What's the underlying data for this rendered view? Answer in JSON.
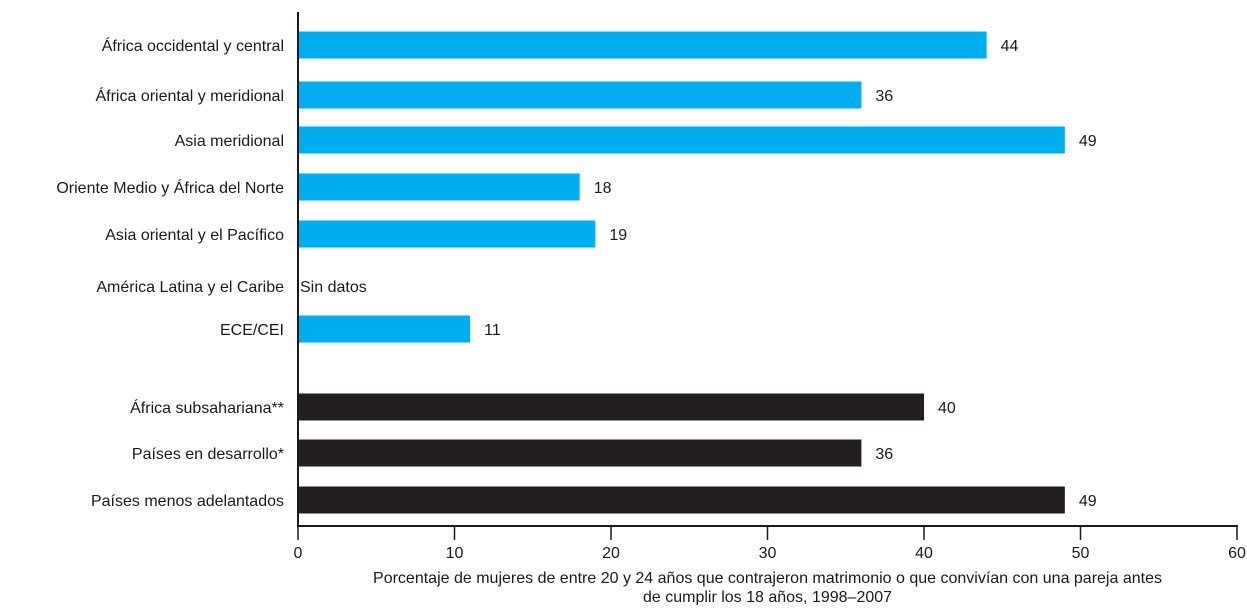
{
  "chart_data": {
    "type": "bar",
    "orientation": "horizontal",
    "title": "",
    "ylabel": "",
    "xlabel_lines": [
      "Porcentaje de mujeres de entre 20 y 24 años que contrajeron matrimonio o que convivían con una pareja antes",
      "de cumplir los 18 años, 1998–2007"
    ],
    "xlim": [
      0,
      60
    ],
    "xticks": [
      0,
      10,
      20,
      30,
      40,
      50,
      60
    ],
    "grid": false,
    "legend": "none",
    "colors": {
      "regional": "#00aeef",
      "aggregate": "#231f20",
      "axis": "#1a1a1a"
    },
    "categories": [
      "África occidental y central",
      "África oriental y meridional",
      "Asia meridional",
      "Oriente Medio y África del Norte",
      "Asia oriental y el Pacífico",
      "América Latina y el Caribe",
      "ECE/CEI",
      "África subsahariana**",
      "Países en desarrollo*",
      "Países menos adelantados"
    ],
    "values": [
      44,
      36,
      49,
      18,
      19,
      null,
      11,
      40,
      36,
      49
    ],
    "value_labels": [
      "44",
      "36",
      "49",
      "18",
      "19",
      "Sin datos",
      "11",
      "40",
      "36",
      "49"
    ],
    "groups": [
      "regional",
      "regional",
      "regional",
      "regional",
      "regional",
      "regional",
      "regional",
      "aggregate",
      "aggregate",
      "aggregate"
    ]
  }
}
